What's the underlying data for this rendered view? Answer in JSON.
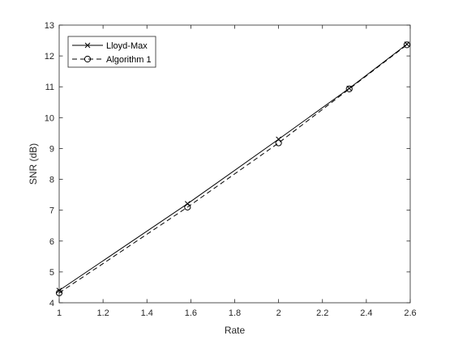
{
  "chart_data": {
    "type": "line",
    "title": "",
    "xlabel": "Rate",
    "ylabel": "SNR (dB)",
    "xlim": [
      1,
      2.6
    ],
    "ylim": [
      4,
      13
    ],
    "xticks": [
      "1",
      "1.2",
      "1.4",
      "1.6",
      "1.8",
      "2",
      "2.2",
      "2.4",
      "2.6"
    ],
    "yticks": [
      "4",
      "5",
      "6",
      "7",
      "8",
      "9",
      "10",
      "11",
      "12",
      "13"
    ],
    "grid": false,
    "legend": "top-left",
    "series": [
      {
        "name": "Lloyd-Max",
        "line_style": "solid",
        "marker": "x",
        "color": "#000000",
        "x": [
          1,
          1.585,
          2,
          2.322,
          2.585
        ],
        "y": [
          4.4,
          7.21,
          9.3,
          10.95,
          12.38
        ]
      },
      {
        "name": "Algorithm 1",
        "line_style": "dashed",
        "marker": "circle",
        "color": "#000000",
        "x": [
          1,
          1.585,
          2,
          2.322,
          2.585
        ],
        "y": [
          4.32,
          7.1,
          9.18,
          10.93,
          12.36
        ]
      }
    ]
  }
}
